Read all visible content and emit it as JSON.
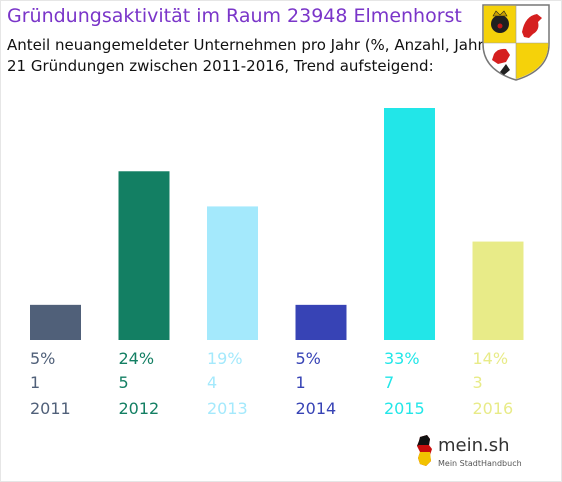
{
  "title": "Gründungsaktivität im Raum 23948 Elmenhorst",
  "subtitle_1": "Anteil neuangemeldeter Unternehmen pro Jahr (%, Anzahl, Jahr)",
  "subtitle_2": "21 Gründungen zwischen 2011-2016, Trend aufsteigend:",
  "logo": {
    "name": "mein.sh",
    "tagline": "Mein StadtHandbuch"
  },
  "chart_data": {
    "type": "bar",
    "title": "Gründungsaktivität im Raum 23948 Elmenhorst",
    "categories": [
      "2011",
      "2012",
      "2013",
      "2014",
      "2015",
      "2016"
    ],
    "series": [
      {
        "values": [
          5,
          24,
          19,
          5,
          33,
          14
        ]
      }
    ],
    "counts": [
      1,
      5,
      4,
      1,
      7,
      3
    ],
    "percent_labels": [
      "5%",
      "24%",
      "19%",
      "5%",
      "33%",
      "14%"
    ],
    "colors": [
      "#506079",
      "#137f63",
      "#a4e9fc",
      "#3743b5",
      "#22e6e8",
      "#e8eb88"
    ],
    "ylim": [
      0,
      33
    ],
    "grid": false
  }
}
